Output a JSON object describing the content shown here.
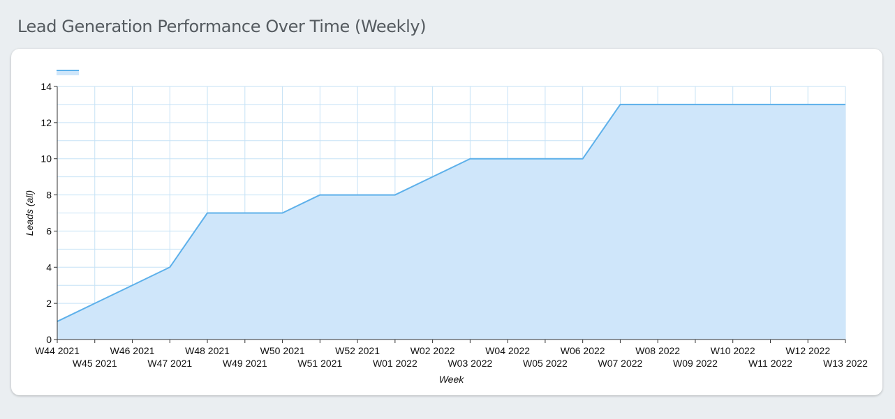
{
  "page": {
    "title": "Lead Generation Performance Over Time (Weekly)"
  },
  "colors": {
    "line": "#5db0ea",
    "fill": "#cfe6fa",
    "grid": "#c6e2f6",
    "axis": "#333333",
    "legend_fill": "#cfe6fa",
    "legend_stroke": "#5db0ea"
  },
  "chart_data": {
    "type": "area",
    "title": "",
    "xlabel": "Week",
    "ylabel": "Leads (all)",
    "ylim": [
      0,
      14
    ],
    "yticks": [
      0,
      2,
      4,
      6,
      8,
      10,
      12,
      14
    ],
    "grid": true,
    "legend": "top-left",
    "categories": [
      "W44 2021",
      "W45 2021",
      "W46 2021",
      "W47 2021",
      "W48 2021",
      "W49 2021",
      "W50 2021",
      "W51 2021",
      "W52 2021",
      "W01 2022",
      "W02 2022",
      "W03 2022",
      "W04 2022",
      "W05 2022",
      "W06 2022",
      "W07 2022",
      "W08 2022",
      "W09 2022",
      "W10 2022",
      "W11 2022",
      "W12 2022",
      "W13 2022"
    ],
    "series": [
      {
        "name": "",
        "values": [
          1,
          2,
          3,
          4,
          7,
          7,
          7,
          8,
          8,
          8,
          9,
          10,
          10,
          10,
          10,
          13,
          13,
          13,
          13,
          13,
          13,
          13
        ]
      }
    ]
  }
}
